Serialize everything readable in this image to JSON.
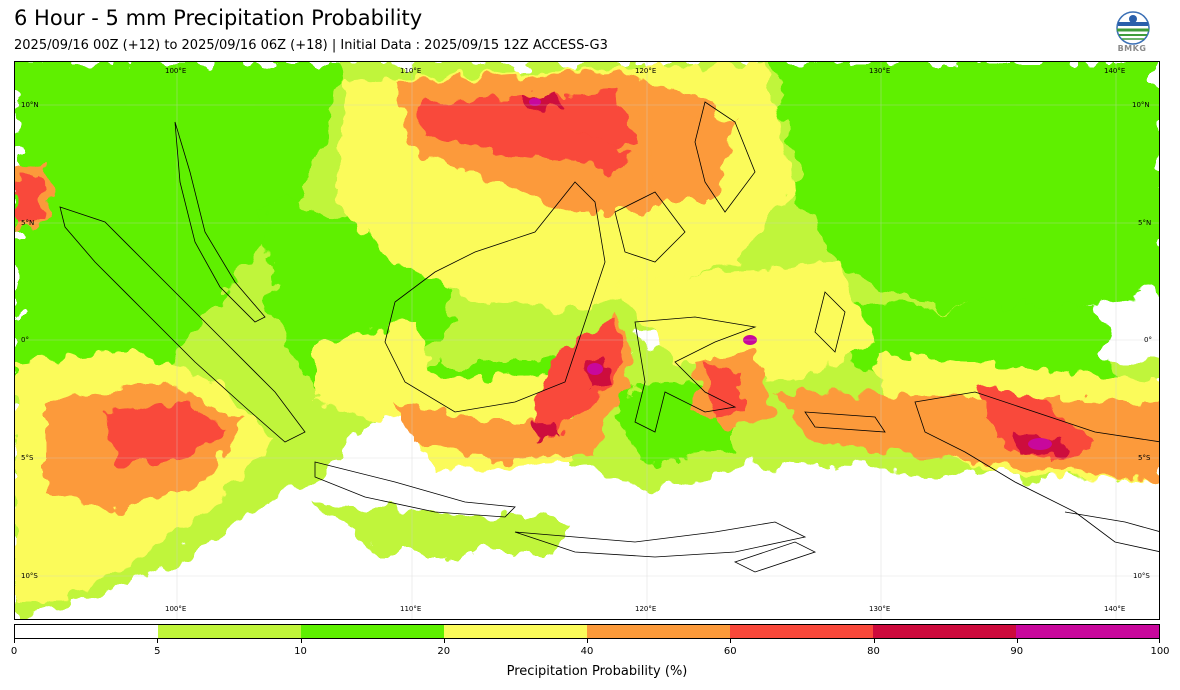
{
  "title": "6 Hour - 5 mm Precipitation Probability",
  "subtitle": "2025/09/16 00Z (+12) to 2025/09/16 06Z (+18) | Initial Data : 2025/09/15 12Z ACCESS-G3",
  "logo_text": "BMKG",
  "map": {
    "lon_labels": [
      "100°E",
      "110°E",
      "120°E",
      "130°E",
      "140°E"
    ],
    "lat_labels": [
      "10°N",
      "5°N",
      "0°",
      "5°S",
      "10°S"
    ]
  },
  "colorbar": {
    "title": "Precipitation Probability (%)",
    "ticks": [
      "0",
      "5",
      "10",
      "20",
      "40",
      "60",
      "80",
      "90",
      "100"
    ],
    "colors": [
      "#ffffff",
      "#c0f53a",
      "#5ef000",
      "#fbfb5a",
      "#fc9a3a",
      "#f9483a",
      "#cd0a3c",
      "#c8089c"
    ]
  }
}
